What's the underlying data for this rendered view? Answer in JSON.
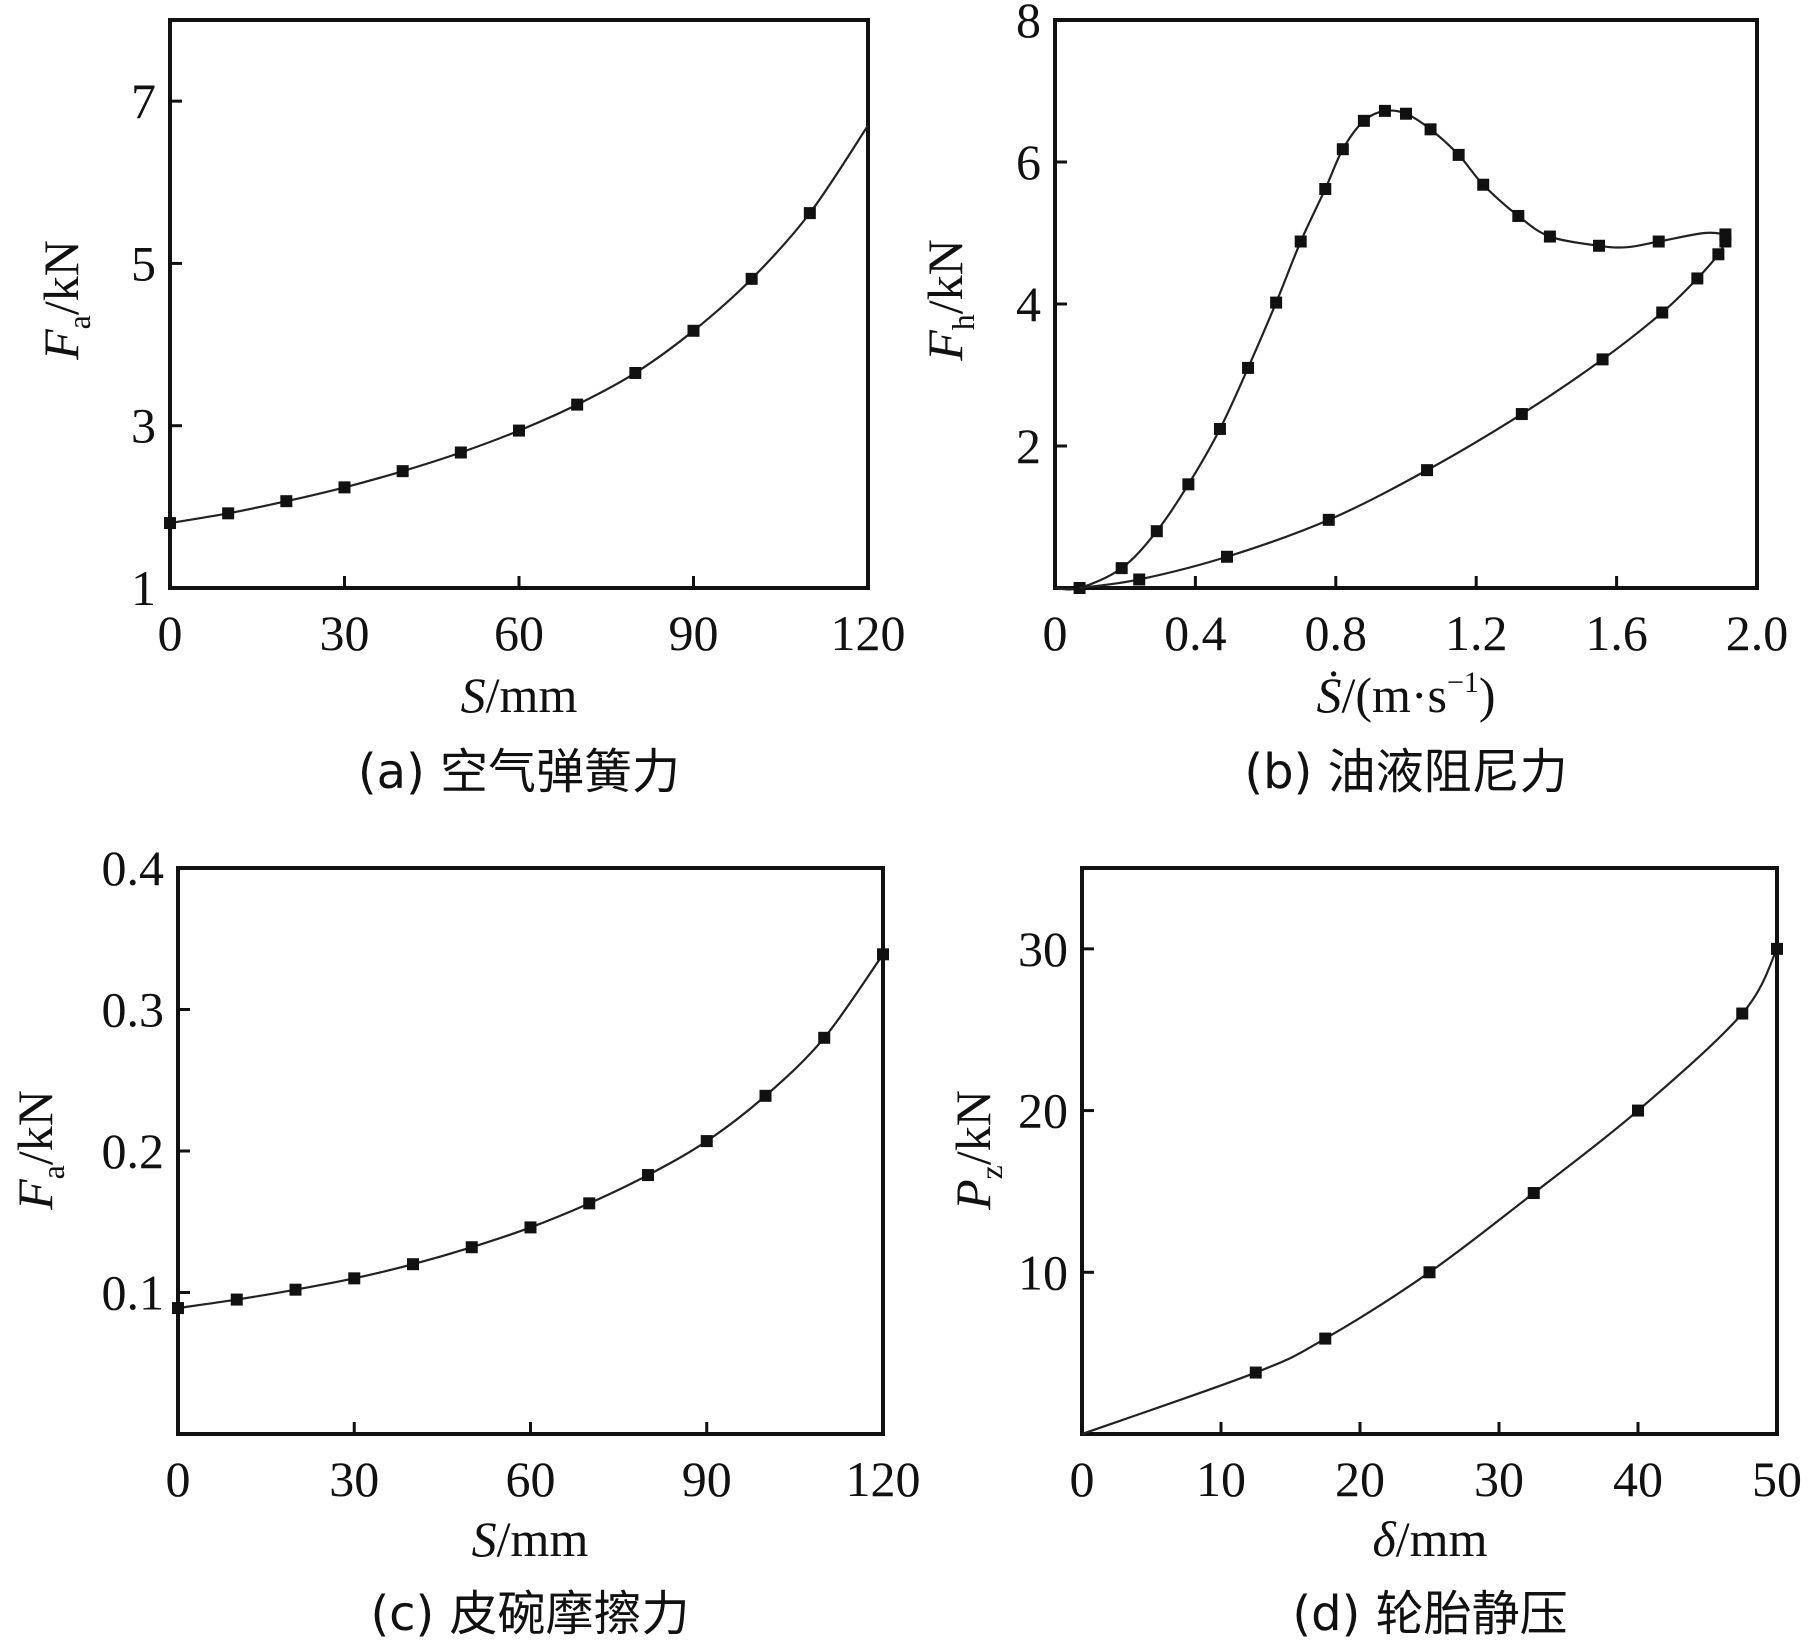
{
  "chart_data": [
    {
      "id": "a",
      "type": "line",
      "caption": "(a) 空气弹簧力",
      "ylabel": {
        "main": "F",
        "sub": "a",
        "unit": "/kN"
      },
      "xlabel": {
        "main": "S",
        "unit": "/mm"
      },
      "xlim": [
        0,
        120
      ],
      "ylim": [
        1,
        8
      ],
      "xticks": [
        0,
        30,
        60,
        90,
        120
      ],
      "yticks": [
        1,
        3,
        5,
        7
      ],
      "series": [
        {
          "x": [
            0,
            10,
            20,
            30,
            40,
            50,
            60,
            70,
            80,
            90,
            100,
            110
          ],
          "y": [
            1.8,
            1.92,
            2.07,
            2.24,
            2.44,
            2.67,
            2.94,
            3.26,
            3.65,
            4.17,
            4.81,
            5.62
          ],
          "curve": [
            [
              0,
              1.8
            ],
            [
              10,
              1.92
            ],
            [
              20,
              2.07
            ],
            [
              30,
              2.24
            ],
            [
              40,
              2.44
            ],
            [
              50,
              2.67
            ],
            [
              60,
              2.94
            ],
            [
              70,
              3.26
            ],
            [
              80,
              3.65
            ],
            [
              90,
              4.17
            ],
            [
              100,
              4.81
            ],
            [
              110,
              5.62
            ],
            [
              120,
              6.7
            ]
          ]
        }
      ]
    },
    {
      "id": "b",
      "type": "line",
      "caption": "(b) 油液阻尼力",
      "ylabel": {
        "main": "F",
        "sub": "h",
        "unit": "/kN"
      },
      "xlabel": {
        "main": "Ṡ",
        "unit": "/(m·s",
        "sup": "−1",
        "close": ")"
      },
      "xlim": [
        0,
        2.0
      ],
      "ylim": [
        0,
        8
      ],
      "xticks": [
        0,
        0.4,
        0.8,
        1.2,
        1.6,
        2.0
      ],
      "xtick_labels": [
        "0",
        "0.4",
        "0.8",
        "1.2",
        "1.6",
        "2.0"
      ],
      "yticks": [
        2,
        4,
        6,
        8
      ],
      "series": [
        {
          "x": [
            0.07,
            0.19,
            0.29,
            0.38,
            0.47,
            0.55,
            0.63,
            0.7,
            0.77,
            0.82,
            0.88,
            0.94,
            1.0,
            1.07,
            1.15,
            1.22,
            1.32,
            1.41,
            1.55,
            1.72,
            1.91
          ],
          "y": [
            0,
            0.28,
            0.8,
            1.46,
            2.24,
            3.1,
            4.02,
            4.88,
            5.62,
            6.18,
            6.58,
            6.72,
            6.68,
            6.46,
            6.1,
            5.68,
            5.24,
            4.95,
            4.82,
            4.88,
            4.98
          ],
          "curve": [
            [
              0,
              0
            ],
            [
              0.07,
              0
            ],
            [
              0.19,
              0.28
            ],
            [
              0.29,
              0.8
            ],
            [
              0.38,
              1.46
            ],
            [
              0.47,
              2.24
            ],
            [
              0.55,
              3.1
            ],
            [
              0.63,
              4.02
            ],
            [
              0.7,
              4.88
            ],
            [
              0.77,
              5.62
            ],
            [
              0.82,
              6.18
            ],
            [
              0.88,
              6.58
            ],
            [
              0.94,
              6.72
            ],
            [
              1.0,
              6.68
            ],
            [
              1.07,
              6.46
            ],
            [
              1.15,
              6.1
            ],
            [
              1.22,
              5.68
            ],
            [
              1.32,
              5.24
            ],
            [
              1.41,
              4.95
            ],
            [
              1.55,
              4.82
            ],
            [
              1.63,
              4.8
            ],
            [
              1.72,
              4.88
            ],
            [
              1.85,
              5.0
            ],
            [
              1.91,
              4.98
            ]
          ]
        },
        {
          "x": [
            0.24,
            0.49,
            0.78,
            1.06,
            1.33,
            1.56,
            1.73,
            1.83,
            1.89,
            1.91
          ],
          "y": [
            0.12,
            0.44,
            0.96,
            1.66,
            2.45,
            3.22,
            3.88,
            4.36,
            4.7,
            4.88
          ],
          "curve": [
            [
              0.07,
              0
            ],
            [
              0.24,
              0.12
            ],
            [
              0.49,
              0.44
            ],
            [
              0.78,
              0.96
            ],
            [
              1.06,
              1.66
            ],
            [
              1.33,
              2.45
            ],
            [
              1.56,
              3.22
            ],
            [
              1.73,
              3.88
            ],
            [
              1.83,
              4.36
            ],
            [
              1.89,
              4.7
            ],
            [
              1.91,
              4.88
            ]
          ]
        }
      ]
    },
    {
      "id": "c",
      "type": "line",
      "caption": "(c) 皮碗摩擦力",
      "ylabel": {
        "main": "F",
        "sub": "a",
        "unit": "/kN"
      },
      "xlabel": {
        "main": "S",
        "unit": "/mm"
      },
      "xlim": [
        0,
        120
      ],
      "ylim": [
        0,
        0.4
      ],
      "xticks": [
        0,
        30,
        60,
        90,
        120
      ],
      "yticks": [
        0.1,
        0.2,
        0.3,
        0.4
      ],
      "series": [
        {
          "x": [
            0,
            10,
            20,
            30,
            40,
            50,
            60,
            70,
            80,
            90,
            100,
            110,
            120
          ],
          "y": [
            0.089,
            0.095,
            0.102,
            0.11,
            0.12,
            0.132,
            0.146,
            0.163,
            0.183,
            0.207,
            0.239,
            0.28,
            0.339
          ],
          "curve": [
            [
              0,
              0.089
            ],
            [
              10,
              0.095
            ],
            [
              20,
              0.102
            ],
            [
              30,
              0.11
            ],
            [
              40,
              0.12
            ],
            [
              50,
              0.132
            ],
            [
              60,
              0.146
            ],
            [
              70,
              0.163
            ],
            [
              80,
              0.183
            ],
            [
              90,
              0.207
            ],
            [
              100,
              0.239
            ],
            [
              110,
              0.28
            ],
            [
              120,
              0.339
            ]
          ]
        }
      ]
    },
    {
      "id": "d",
      "type": "line",
      "caption": "(d) 轮胎静压",
      "ylabel": {
        "main": "P",
        "sub": "z",
        "unit": "/kN"
      },
      "xlabel": {
        "main": "δ",
        "unit": "/mm"
      },
      "xlim": [
        0,
        50
      ],
      "ylim": [
        0,
        35
      ],
      "xticks": [
        0,
        10,
        20,
        30,
        40,
        50
      ],
      "yticks": [
        10,
        20,
        30
      ],
      "series": [
        {
          "x": [
            12.5,
            17.5,
            25,
            32.5,
            40,
            47.5,
            50
          ],
          "y": [
            3.8,
            5.9,
            10,
            14.9,
            20,
            26,
            30
          ],
          "curve": [
            [
              0,
              0
            ],
            [
              12.5,
              3.8
            ],
            [
              17.5,
              5.9
            ],
            [
              25,
              10
            ],
            [
              32.5,
              14.9
            ],
            [
              40,
              20
            ],
            [
              47.5,
              26
            ],
            [
              50,
              30
            ]
          ]
        }
      ]
    }
  ]
}
